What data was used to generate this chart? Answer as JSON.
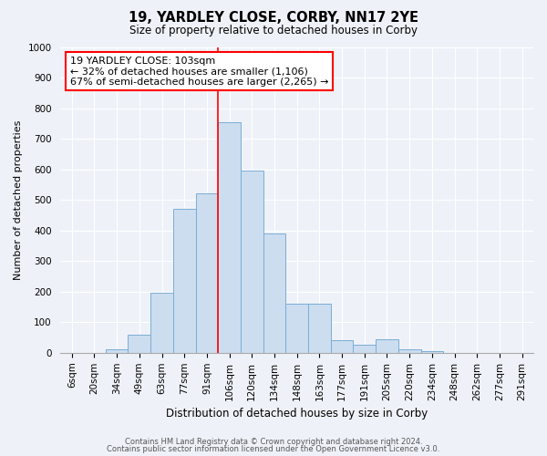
{
  "title": "19, YARDLEY CLOSE, CORBY, NN17 2YE",
  "subtitle": "Size of property relative to detached houses in Corby",
  "xlabel": "Distribution of detached houses by size in Corby",
  "ylabel": "Number of detached properties",
  "bar_labels": [
    "6sqm",
    "20sqm",
    "34sqm",
    "49sqm",
    "63sqm",
    "77sqm",
    "91sqm",
    "106sqm",
    "120sqm",
    "134sqm",
    "148sqm",
    "163sqm",
    "177sqm",
    "191sqm",
    "205sqm",
    "220sqm",
    "234sqm",
    "248sqm",
    "262sqm",
    "277sqm",
    "291sqm"
  ],
  "bar_values": [
    0,
    0,
    10,
    60,
    195,
    470,
    520,
    755,
    595,
    390,
    160,
    160,
    40,
    25,
    45,
    10,
    5,
    0,
    0,
    0,
    0
  ],
  "bar_color": "#ccddf0",
  "bar_edgecolor": "#7aadd4",
  "bar_linewidth": 0.7,
  "vline_index": 7,
  "vline_color": "red",
  "vline_linewidth": 1.2,
  "annotation_title": "19 YARDLEY CLOSE: 103sqm",
  "annotation_line1": "← 32% of detached houses are smaller (1,106)",
  "annotation_line2": "67% of semi-detached houses are larger (2,265) →",
  "annotation_box_edgecolor": "red",
  "annotation_box_facecolor": "white",
  "annotation_fontsize": 8.0,
  "ylim": [
    0,
    1000
  ],
  "yticks": [
    0,
    100,
    200,
    300,
    400,
    500,
    600,
    700,
    800,
    900,
    1000
  ],
  "title_fontsize": 10.5,
  "subtitle_fontsize": 8.5,
  "xlabel_fontsize": 8.5,
  "ylabel_fontsize": 8.0,
  "tick_fontsize": 7.5,
  "footer_line1": "Contains HM Land Registry data © Crown copyright and database right 2024.",
  "footer_line2": "Contains public sector information licensed under the Open Government Licence v3.0.",
  "footer_fontsize": 6.0,
  "background_color": "#eef2f8",
  "grid_color": "white",
  "grid_linewidth": 0.8
}
